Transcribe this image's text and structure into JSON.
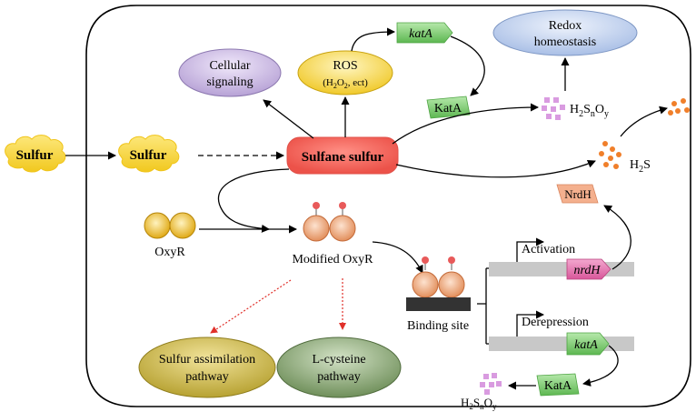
{
  "nodes": {
    "sulfur_outside": "Sulfur",
    "sulfur_inside": "Sulfur",
    "sulfane_sulfur": "Sulfane sulfur",
    "cellular_signaling_line1": "Cellular",
    "cellular_signaling_line2": "signaling",
    "ros_line1": "ROS",
    "ros_line2_prefix": "(H",
    "ros_line2_sub1": "2",
    "ros_line2_mid": "O",
    "ros_line2_sub2": "2",
    "ros_line2_suffix": ", ect)",
    "katA_gene_top": "katA",
    "katA_protein_top": "KatA",
    "redox_line1": "Redox",
    "redox_line2": "homeostasis",
    "oxyr": "OxyR",
    "modified_oxyr": "Modified OxyR",
    "binding_site": "Binding site",
    "activation": "Activation",
    "derepression": "Derepression",
    "nrdH_gene": "nrdH",
    "nrdH_protein": "NrdH",
    "katA_gene_bottom": "katA",
    "katA_protein_bottom": "KatA",
    "sulfur_assimilation_line1": "Sulfur assimilation",
    "sulfur_assimilation_line2": "pathway",
    "lcysteine_line1": "L-cysteine",
    "lcysteine_line2": "pathway"
  },
  "formulas": {
    "h2sno_y_top": {
      "h": "H",
      "s1": "2",
      "s": "S",
      "n": "n",
      "o": "O",
      "y": "y"
    },
    "h2sno_y_bottom": {
      "h": "H",
      "s1": "2",
      "s": "S",
      "n": "n",
      "o": "O",
      "y": "y"
    },
    "h2s": {
      "h": "H",
      "s1": "2",
      "s": "S"
    }
  },
  "colors": {
    "sulfur_yellow": "#f7d62f",
    "sulfane_red": "#f0645c",
    "cellular_purple": "#c9b8e0",
    "ros_yellow": "#f5d54a",
    "redox_blue": "#c4d4ef",
    "gene_green": "#7fcf73",
    "gene_pink": "#e678b0",
    "nrdh_orange": "#f4b08e",
    "sulfur_assim_olive": "#c8b44a",
    "lcysteine_green": "#8fa878",
    "dna_gray": "#c8c8c8",
    "binding_dark": "#333333",
    "particle_orange": "#f07f2a",
    "particle_violet": "#d99be0",
    "oxyr_gold": "#f2c94c",
    "modified_peach": "#f3b48c",
    "dot_red": "#e85a5a",
    "dotted_arrow_red": "#e0302a"
  }
}
